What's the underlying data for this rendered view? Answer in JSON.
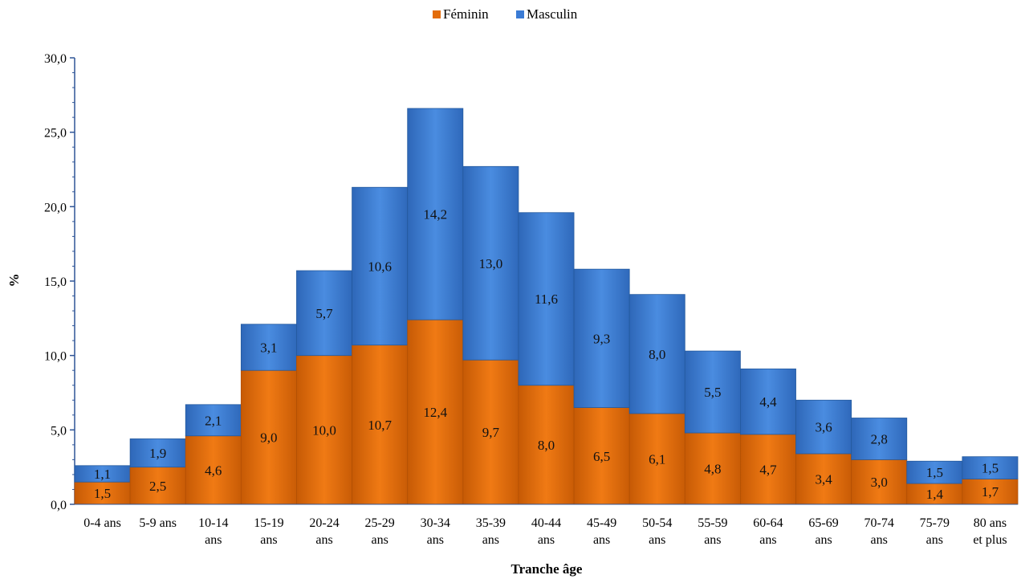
{
  "chart_data": {
    "type": "bar",
    "stacked": true,
    "xlabel": "Tranche âge",
    "ylabel": "%",
    "ylim": [
      0,
      30
    ],
    "yticks": [
      "0,0",
      "5,0",
      "10,0",
      "15,0",
      "20,0",
      "25,0",
      "30,0"
    ],
    "ytick_values": [
      0,
      5,
      10,
      15,
      20,
      25,
      30
    ],
    "grid": false,
    "legend_position": "top-center",
    "categories": [
      [
        "0-4 ans"
      ],
      [
        "5-9 ans"
      ],
      [
        "10-14",
        "ans"
      ],
      [
        "15-19",
        "ans"
      ],
      [
        "20-24",
        "ans"
      ],
      [
        "25-29",
        "ans"
      ],
      [
        "30-34",
        "ans"
      ],
      [
        "35-39",
        "ans"
      ],
      [
        "40-44",
        "ans"
      ],
      [
        "45-49",
        "ans"
      ],
      [
        "50-54",
        "ans"
      ],
      [
        "55-59",
        "ans"
      ],
      [
        "60-64",
        "ans"
      ],
      [
        "65-69",
        "ans"
      ],
      [
        "70-74",
        "ans"
      ],
      [
        "75-79",
        "ans"
      ],
      [
        "80 ans",
        "et plus"
      ]
    ],
    "series": [
      {
        "name": "Féminin",
        "color": "#E36C09",
        "values": [
          1.5,
          2.5,
          4.6,
          9.0,
          10.0,
          10.7,
          12.4,
          9.7,
          8.0,
          6.5,
          6.1,
          4.8,
          4.7,
          3.4,
          3.0,
          1.4,
          1.7
        ],
        "labels": [
          "1,5",
          "2,5",
          "4,6",
          "9,0",
          "10,0",
          "10,7",
          "12,4",
          "9,7",
          "8,0",
          "6,5",
          "6,1",
          "4,8",
          "4,7",
          "3,4",
          "3,0",
          "1,4",
          "1,7"
        ]
      },
      {
        "name": "Masculin",
        "color": "#3A7BD5",
        "values": [
          1.1,
          1.9,
          2.1,
          3.1,
          5.7,
          10.6,
          14.2,
          13.0,
          11.6,
          9.3,
          8.0,
          5.5,
          4.4,
          3.6,
          2.8,
          1.5,
          1.5
        ],
        "labels": [
          "1,1",
          "1,9",
          "2,1",
          "3,1",
          "5,7",
          "10,6",
          "14,2",
          "13,0",
          "11,6",
          "9,3",
          "8,0",
          "5,5",
          "4,4",
          "3,6",
          "2,8",
          "1,5",
          "1,5"
        ]
      }
    ]
  }
}
